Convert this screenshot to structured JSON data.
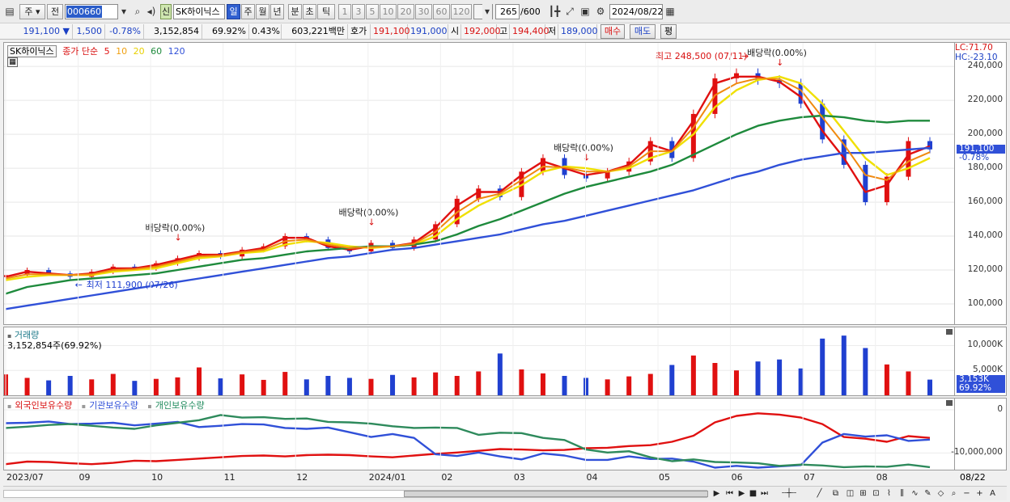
{
  "toolbar": {
    "period_select": "주",
    "prev_button": "전",
    "stock_code": "000660",
    "stock_name": "SK하이닉스",
    "new_badge": "신",
    "periods": [
      "일",
      "주",
      "월",
      "년",
      "분",
      "초",
      "틱"
    ],
    "selected_period": "일",
    "intervals": [
      "1",
      "3",
      "5",
      "10",
      "20",
      "30",
      "60",
      "120"
    ],
    "data_count": "265",
    "data_total": "/600",
    "date": "2024/08/22"
  },
  "quote": {
    "price": "191,100",
    "change": "1,500",
    "change_pct": "-0.78%",
    "volume": "3,152,854",
    "volume_ratio": "69.92%",
    "turnover": "0.43%",
    "trade_value": "603,221백만",
    "hoga_label": "호가",
    "ask": "191,100",
    "bid": "191,000",
    "open_label": "시",
    "open": "192,000",
    "high_label": "고",
    "high": "194,400",
    "low_label": "저",
    "low": "189,000",
    "buy_button": "매수",
    "sell_button": "매도",
    "avg_button": "평"
  },
  "price_pane": {
    "stock_tag": "SK하이닉스",
    "ma_label": "종가 단순",
    "ma_periods": [
      "5",
      "10",
      "20",
      "60",
      "120"
    ],
    "ma_colors": [
      "#e01010",
      "#f08a10",
      "#f0e000",
      "#1e8a3c",
      "#3050d8"
    ],
    "lc_label": "LC:71.70",
    "hc_label": "HC:-23.10",
    "current_price_tag": "191,100",
    "current_change_tag": "-0.78%",
    "max_annotation": "최고 248,500 (07/11)",
    "min_annotation": "최저 111,900 (07/26)",
    "dividend_labels": [
      "배당락(0.00%)",
      "배당락(0.00%)",
      "배당락(0.00%)",
      "배당락(0.00%)"
    ]
  },
  "volume_pane": {
    "title": "거래량",
    "value_label": "3,152,854주(69.92%)",
    "current_tag": "3,153K",
    "current_pct": "69.92%"
  },
  "holding_pane": {
    "legend": [
      "외국인보유수량",
      "기관보유수량",
      "개인보유수량"
    ]
  },
  "chart_data": [
    {
      "type": "candlestick",
      "title": "SK하이닉스",
      "ylabel": "",
      "ylim": [
        90000,
        252000
      ],
      "y_ticks": [
        "240,000",
        "220,000",
        "200,000",
        "180,000",
        "160,000",
        "140,000",
        "120,000",
        "100,000"
      ],
      "x_ticks": [
        "2023/07",
        "09",
        "10",
        "11",
        "12",
        "2024/01",
        "02",
        "03",
        "04",
        "05",
        "06",
        "07",
        "08"
      ],
      "x_end_label": "08/22",
      "series": [
        {
          "name": "종가",
          "values": [
            117000,
            120000,
            118000,
            116000,
            119000,
            122000,
            121000,
            124000,
            127000,
            130000,
            128000,
            132000,
            134000,
            140000,
            138000,
            133000,
            131000,
            136000,
            133000,
            138000,
            147000,
            162000,
            168000,
            163000,
            178000,
            186000,
            176000,
            174000,
            178000,
            184000,
            196000,
            186000,
            212000,
            233000,
            236000,
            232000,
            230000,
            218000,
            197000,
            182000,
            160000,
            175000,
            196000,
            191100
          ]
        },
        {
          "name": "5",
          "values": [
            116000,
            119000,
            118000,
            117000,
            118000,
            121000,
            121000,
            123000,
            126000,
            129000,
            129000,
            131000,
            133000,
            139000,
            139000,
            134000,
            132000,
            134000,
            134000,
            136000,
            145000,
            158000,
            166000,
            166000,
            176000,
            184000,
            180000,
            176000,
            178000,
            182000,
            194000,
            190000,
            208000,
            230000,
            234000,
            234000,
            231000,
            222000,
            202000,
            186000,
            166000,
            170000,
            188000,
            193000
          ]
        },
        {
          "name": "20",
          "values": [
            114000,
            116000,
            117000,
            117000,
            117000,
            119000,
            120000,
            121000,
            124000,
            127000,
            128000,
            130000,
            131000,
            135000,
            137000,
            136000,
            134000,
            133000,
            134000,
            135000,
            140000,
            150000,
            158000,
            164000,
            170000,
            178000,
            181000,
            180000,
            178000,
            180000,
            186000,
            190000,
            200000,
            216000,
            226000,
            232000,
            234000,
            230000,
            218000,
            202000,
            186000,
            176000,
            180000,
            186000
          ]
        },
        {
          "name": "60",
          "values": [
            106000,
            110000,
            112000,
            114000,
            115000,
            116000,
            117000,
            118000,
            120000,
            122000,
            124000,
            126000,
            127000,
            129000,
            131000,
            132000,
            133000,
            134000,
            134000,
            135000,
            137000,
            141000,
            146000,
            150000,
            155000,
            160000,
            165000,
            169000,
            172000,
            175000,
            178000,
            182000,
            188000,
            194000,
            200000,
            205000,
            208000,
            210000,
            211000,
            210000,
            208000,
            207000,
            208000,
            208000
          ]
        },
        {
          "name": "120",
          "values": [
            97000,
            99000,
            101000,
            103000,
            105000,
            107000,
            109000,
            111000,
            113000,
            115000,
            117000,
            119000,
            121000,
            123000,
            125000,
            127000,
            128000,
            130000,
            132000,
            133000,
            135000,
            137000,
            139000,
            141000,
            144000,
            147000,
            149000,
            152000,
            155000,
            158000,
            161000,
            164000,
            167000,
            171000,
            175000,
            178000,
            182000,
            185000,
            187000,
            189000,
            189000,
            190000,
            191000,
            192000
          ]
        }
      ]
    },
    {
      "type": "bar",
      "title": "거래량",
      "ylim": [
        0,
        13000000
      ],
      "y_ticks": [
        "10,000K",
        "5,000K"
      ],
      "series": [
        {
          "name": "거래량",
          "values": [
            4200000,
            3500000,
            3000000,
            3900000,
            3200000,
            4300000,
            2900000,
            3300000,
            3600000,
            5600000,
            3400000,
            4200000,
            3100000,
            4700000,
            3200000,
            3900000,
            3500000,
            3300000,
            4100000,
            3600000,
            4600000,
            3900000,
            4800000,
            8400000,
            5200000,
            4400000,
            3900000,
            3500000,
            3200000,
            3800000,
            4300000,
            6100000,
            8000000,
            6500000,
            5000000,
            6800000,
            7200000,
            5400000,
            11400000,
            12000000,
            9500000,
            6200000,
            4800000,
            3152854
          ]
        }
      ]
    },
    {
      "type": "line",
      "title": "",
      "ylim": [
        -13500000,
        1500000
      ],
      "y_ticks": [
        "0",
        "-10,000,000"
      ],
      "series": [
        {
          "name": "외국인보유수량",
          "values": [
            -12600000,
            -12000000,
            -12100000,
            -12400000,
            -12600000,
            -12300000,
            -11800000,
            -11900000,
            -11600000,
            -11300000,
            -11000000,
            -10700000,
            -10600000,
            -10800000,
            -10500000,
            -10400000,
            -10500000,
            -10800000,
            -11000000,
            -10600000,
            -10200000,
            -9900000,
            -9500000,
            -9100000,
            -9200000,
            -9400000,
            -9300000,
            -8900000,
            -8800000,
            -8400000,
            -8200000,
            -7400000,
            -6000000,
            -2900000,
            -1400000,
            -800000,
            -1100000,
            -1800000,
            -3300000,
            -6300000,
            -6700000,
            -7400000,
            -6100000,
            -6500000
          ]
        },
        {
          "name": "기관보유수량",
          "values": [
            -3100000,
            -3000000,
            -2700000,
            -3300000,
            -3200000,
            -3000000,
            -3600000,
            -3200000,
            -2800000,
            -4000000,
            -3700000,
            -3300000,
            -3400000,
            -4200000,
            -4400000,
            -4100000,
            -5200000,
            -6300000,
            -5600000,
            -6500000,
            -10300000,
            -10700000,
            -9900000,
            -10800000,
            -11500000,
            -10100000,
            -10600000,
            -11600000,
            -11600000,
            -10800000,
            -11400000,
            -11300000,
            -12000000,
            -13400000,
            -13000000,
            -13400000,
            -13100000,
            -12800000,
            -7600000,
            -5600000,
            -6200000,
            -5900000,
            -7200000,
            -6900000
          ]
        },
        {
          "name": "개인보유수량",
          "values": [
            -4200000,
            -3900000,
            -3500000,
            -3300000,
            -3700000,
            -4100000,
            -4400000,
            -3600000,
            -3000000,
            -2400000,
            -1200000,
            -1800000,
            -1700000,
            -2100000,
            -2000000,
            -2800000,
            -2900000,
            -3200000,
            -3800000,
            -4200000,
            -4100000,
            -4200000,
            -5800000,
            -5300000,
            -5400000,
            -6500000,
            -7000000,
            -9200000,
            -9900000,
            -9600000,
            -11000000,
            -11900000,
            -11500000,
            -12100000,
            -12200000,
            -12400000,
            -13000000,
            -12700000,
            -12900000,
            -13300000,
            -13100000,
            -13200000,
            -12700000,
            -13300000
          ]
        }
      ]
    }
  ]
}
